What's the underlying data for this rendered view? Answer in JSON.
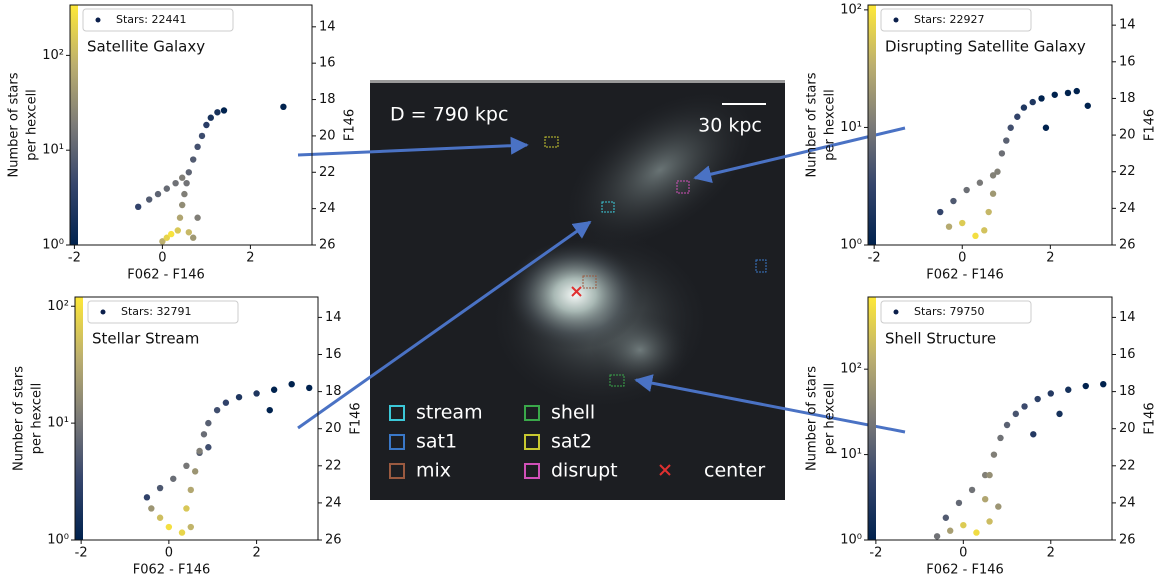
{
  "chart_data": [
    {
      "type": "hexbin",
      "title": "Satellite Galaxy",
      "xlabel": "F062 - F146",
      "y2label": "F146",
      "colorbar_label": [
        "Number of stars",
        "per hexcell"
      ],
      "xlim": [
        -2.1,
        3.4
      ],
      "xticks": [
        -2,
        0,
        2
      ],
      "ylim": [
        26,
        12.8
      ],
      "yticks": [
        14,
        16,
        18,
        20,
        22,
        24,
        26
      ],
      "log_color": true,
      "clim": [
        1,
        340
      ],
      "cticks": [
        {
          "value": 1,
          "label": "10⁰"
        },
        {
          "value": 10,
          "label": "10¹"
        },
        {
          "value": 100,
          "label": "10²"
        }
      ],
      "series": [
        {
          "name": "Stars: 22441",
          "color": "#0b1f4b",
          "x": [
            0.35,
            0.4,
            0.45,
            0.5,
            0.55,
            0.6,
            0.7,
            0.8,
            0.9,
            1.0,
            1.1,
            1.25,
            1.4,
            -0.55,
            -0.3,
            -0.1,
            0.1,
            0.3,
            0.45,
            0.0,
            0.1,
            0.2,
            0.6,
            0.8,
            0.7,
            2.75
          ],
          "y": [
            25.2,
            24.5,
            23.8,
            23.2,
            22.6,
            22.0,
            21.3,
            20.6,
            20.0,
            19.4,
            19.0,
            18.7,
            18.6,
            23.9,
            23.5,
            23.2,
            22.9,
            22.6,
            22.3,
            25.8,
            25.6,
            25.4,
            25.3,
            24.5,
            25.6,
            18.4
          ],
          "counts": [
            150,
            60,
            30,
            20,
            15,
            10,
            8,
            6,
            5,
            3,
            2,
            2,
            1,
            4,
            8,
            10,
            12,
            14,
            20,
            80,
            200,
            300,
            100,
            20,
            40,
            1
          ]
        }
      ]
    },
    {
      "type": "hexbin",
      "title": "Disrupting Satellite Galaxy",
      "xlabel": "F062 - F146",
      "y2label": "F146",
      "colorbar_label": [
        "Number of stars",
        "per hexcell"
      ],
      "xlim": [
        -2.14,
        3.4
      ],
      "xticks": [
        -2,
        0,
        2
      ],
      "ylim": [
        26,
        12.9
      ],
      "yticks": [
        14,
        16,
        18,
        20,
        22,
        24,
        26
      ],
      "log_color": true,
      "clim": [
        1,
        110
      ],
      "cticks": [
        {
          "value": 1,
          "label": "10⁰"
        },
        {
          "value": 10,
          "label": "10¹"
        },
        {
          "value": 100,
          "label": "10²"
        }
      ],
      "series": [
        {
          "name": "Stars: 22927",
          "color": "#0b1f4b",
          "x": [
            -0.3,
            0,
            0.3,
            0.5,
            -0.5,
            -0.2,
            0.1,
            0.4,
            0.7,
            0.6,
            0.7,
            0.8,
            0.9,
            1.0,
            1.1,
            1.25,
            1.4,
            1.6,
            1.8,
            2.1,
            2.6,
            2.85,
            2.4,
            1.9
          ],
          "y": [
            25.0,
            24.8,
            25.5,
            25.2,
            24.2,
            23.6,
            23.0,
            22.6,
            22.2,
            24.2,
            23.2,
            22.0,
            21.0,
            20.3,
            19.6,
            19.0,
            18.5,
            18.2,
            18.0,
            17.8,
            17.6,
            18.4,
            17.7,
            19.6
          ],
          "counts": [
            30,
            60,
            90,
            50,
            3,
            5,
            8,
            10,
            12,
            40,
            20,
            12,
            8,
            6,
            4,
            3,
            2,
            2,
            1,
            1,
            1,
            1,
            1,
            1
          ]
        }
      ]
    },
    {
      "type": "hexbin",
      "title": "Stellar Stream",
      "xlabel": "F062 - F146",
      "y2label": "F146",
      "colorbar_label": [
        "Number of stars",
        "per hexcell"
      ],
      "xlim": [
        -2.14,
        3.4
      ],
      "xticks": [
        -2,
        0,
        2
      ],
      "ylim": [
        26,
        12.9
      ],
      "yticks": [
        14,
        16,
        18,
        20,
        22,
        24,
        26
      ],
      "log_color": true,
      "clim": [
        1,
        120
      ],
      "cticks": [
        {
          "value": 1,
          "label": "10⁰"
        },
        {
          "value": 10,
          "label": "10¹"
        },
        {
          "value": 100,
          "label": "10²"
        }
      ],
      "series": [
        {
          "name": "Stars: 32791",
          "color": "#0b1f4b",
          "x": [
            -0.4,
            -0.2,
            0,
            0.3,
            0.5,
            -0.5,
            -0.2,
            0.1,
            0.4,
            0.7,
            0.9,
            0.4,
            0.5,
            0.6,
            0.7,
            0.8,
            0.9,
            1.1,
            1.3,
            1.6,
            2.0,
            2.4,
            2.8,
            3.2,
            2.3
          ],
          "y": [
            24.3,
            24.8,
            25.3,
            25.6,
            25.3,
            23.7,
            23.2,
            22.7,
            22.0,
            21.3,
            21.0,
            24.3,
            23.3,
            22.3,
            21.2,
            20.3,
            19.7,
            19.0,
            18.6,
            18.3,
            18.1,
            17.9,
            17.6,
            17.8,
            19.0
          ],
          "counts": [
            20,
            50,
            100,
            80,
            40,
            3,
            5,
            8,
            10,
            6,
            4,
            60,
            30,
            20,
            12,
            8,
            6,
            4,
            3,
            2,
            2,
            1,
            1,
            1,
            1
          ]
        }
      ]
    },
    {
      "type": "hexbin",
      "title": "Shell Structure",
      "xlabel": "F062 - F146",
      "y2label": "F146",
      "colorbar_label": [
        "Number of stars",
        "per hexcell"
      ],
      "xlim": [
        -2.18,
        3.4
      ],
      "xticks": [
        -2,
        0,
        2
      ],
      "ylim": [
        26,
        12.9
      ],
      "yticks": [
        14,
        16,
        18,
        20,
        22,
        24,
        26
      ],
      "log_color": true,
      "clim": [
        1,
        700
      ],
      "cticks": [
        {
          "value": 10,
          "label": "10¹"
        },
        {
          "value": 100,
          "label": "10²"
        },
        {
          "value": 1,
          "label": "10⁰"
        }
      ],
      "series": [
        {
          "name": "Stars: 79750",
          "color": "#0b1f4b",
          "x": [
            -0.6,
            -0.3,
            0,
            0.3,
            0.6,
            0.8,
            -0.4,
            -0.1,
            0.2,
            0.5,
            0.5,
            0.6,
            0.7,
            0.85,
            1.0,
            1.2,
            1.4,
            1.7,
            2.0,
            2.4,
            2.8,
            3.2,
            2.2,
            1.6
          ],
          "y": [
            25.8,
            25.5,
            25.2,
            25.6,
            25.0,
            24.2,
            24.8,
            24.0,
            23.3,
            22.5,
            23.8,
            22.5,
            21.4,
            20.5,
            19.8,
            19.2,
            18.8,
            18.4,
            18.1,
            17.9,
            17.7,
            17.6,
            19.2,
            20.3
          ],
          "counts": [
            20,
            80,
            300,
            500,
            200,
            60,
            10,
            15,
            20,
            30,
            100,
            50,
            30,
            20,
            12,
            8,
            6,
            4,
            3,
            2,
            1,
            1,
            2,
            3
          ]
        }
      ]
    }
  ],
  "image": {
    "distance": "D = 790 kpc",
    "scale": "30 kpc",
    "legend": [
      {
        "name": "stream",
        "color": "#3cc8d8"
      },
      {
        "name": "sat1",
        "color": "#3a78c8"
      },
      {
        "name": "mix",
        "color": "#9a5a40"
      },
      {
        "name": "shell",
        "color": "#3aa84a"
      },
      {
        "name": "sat2",
        "color": "#c8c830"
      },
      {
        "name": "disrupt",
        "color": "#d050b8"
      }
    ],
    "center": {
      "name": "center",
      "color": "#e03030"
    }
  }
}
